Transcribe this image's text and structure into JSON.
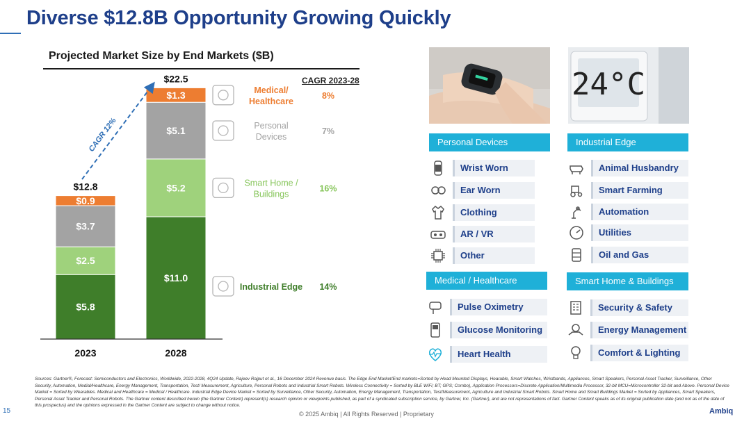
{
  "page_title": "Diverse $12.8B Opportunity Growing Quickly",
  "chart_title": "Projected Market Size by End Markets ($B)",
  "cagr_header": "CAGR 2023-28",
  "cagr_arrow_label": "CAGR 12%",
  "chart_data": {
    "type": "bar",
    "stacked": true,
    "categories": [
      "2023",
      "2028"
    ],
    "totals": [
      12.8,
      22.5
    ],
    "total_labels": [
      "$12.8",
      "$22.5"
    ],
    "series": [
      {
        "name": "Industrial Edge",
        "values": [
          5.8,
          11.0
        ],
        "labels": [
          "$5.8",
          "$11.0"
        ],
        "color": "#3f7e2a",
        "cagr": "14%",
        "legend_color": "#3f7e2a",
        "label_lines": [
          "Industrial Edge"
        ]
      },
      {
        "name": "Smart Home / Buildings",
        "values": [
          2.5,
          5.2
        ],
        "labels": [
          "$2.5",
          "$5.2"
        ],
        "color": "#9fd27c",
        "cagr": "16%",
        "legend_color": "#86c55a",
        "label_lines": [
          "Smart Home /",
          "Buildings"
        ]
      },
      {
        "name": "Personal Devices",
        "values": [
          3.7,
          5.1
        ],
        "labels": [
          "$3.7",
          "$5.1"
        ],
        "color": "#a3a3a3",
        "cagr": "7%",
        "legend_color": "#a3a3a3",
        "label_lines": [
          "Personal",
          "Devices"
        ]
      },
      {
        "name": "Medical/ Healthcare",
        "values": [
          0.9,
          1.3
        ],
        "labels": [
          "$0.9",
          "$1.3"
        ],
        "color": "#ed7d31",
        "cagr": "8%",
        "legend_color": "#ed7d31",
        "label_lines": [
          "Medical/",
          "Healthcare"
        ]
      }
    ],
    "grid": false,
    "legend": "right"
  },
  "personal_devices": {
    "header": "Personal Devices",
    "items": [
      {
        "label": "Wrist Worn",
        "icon": "watch-icon"
      },
      {
        "label": "Ear Worn",
        "icon": "earbuds-icon"
      },
      {
        "label": "Clothing",
        "icon": "clothing-icon"
      },
      {
        "label": "AR / VR",
        "icon": "vr-headset-icon"
      },
      {
        "label": "Other",
        "icon": "chip-icon"
      }
    ]
  },
  "industrial_edge": {
    "header": "Industrial Edge",
    "items": [
      {
        "label": "Animal Husbandry",
        "icon": "cow-icon"
      },
      {
        "label": "Smart Farming",
        "icon": "tractor-icon"
      },
      {
        "label": "Automation",
        "icon": "robot-arm-icon"
      },
      {
        "label": "Utilities",
        "icon": "meter-icon"
      },
      {
        "label": "Oil and Gas",
        "icon": "oil-drum-icon"
      }
    ]
  },
  "medical_healthcare": {
    "header": "Medical / Healthcare",
    "items": [
      {
        "label": "Pulse Oximetry",
        "icon": "finger-clip-icon"
      },
      {
        "label": "Glucose Monitoring",
        "icon": "glucose-meter-icon"
      },
      {
        "label": "Heart Health",
        "icon": "heartbeat-icon"
      }
    ]
  },
  "smart_home_buildings": {
    "header": "Smart Home & Buildings",
    "items": [
      {
        "label": "Security & Safety",
        "icon": "building-icon"
      },
      {
        "label": "Energy Management",
        "icon": "energy-hands-icon"
      },
      {
        "label": "Comfort & Lighting",
        "icon": "lightbulb-icon"
      }
    ]
  },
  "photos": {
    "smartwatch_alt": "smartwatch-photo",
    "thermostat_reading": "24°C"
  },
  "footer": {
    "sources": "Sources: Gartner®, Forecast: Semiconductors and Electronics, Worldwide, 2022-2028, 4Q24 Update, Rajeev Rajput et al., 16 December 2024 Revenue basis. The Edge End Market/End markets=Sorted by Head Mounted Displays, Hearable, Smart Watches, Wristbands, Appliances, Smart Speakers, Personal Asset Tracker, Surveillance, Other Security, Automation, Medial/Healthcare, Energy Management, Transportation, Test/ Measurement, Agriculture, Personal Robots and Industrial Smart Robots. Wireless Connectivity = Sorted by BLE WiFi; BT; GPS; Combo), Application Processors=Discrete Application/Multimedia Processor, 32-bit MCU=Microcontroller 32-bit and Above. Personal Device Market = Sorted by Wearables. Medical and Healthcare = Medical / Healthcare. Industrial Edge Device Market = Sorted by Surveillance, Other Security, Automation, Energy Management, Transportation, Test/Measurement, Agriculture and Industrial Smart Robots. Smart Home and Smart Buildings Market = Sorted by Appliances, Smart Speakers, Personal Asset Tracker and Personal Robots. The Gartner content described herein (the Gartner Content) represent(s) research opinion or viewpoints published, as part of a syndicated subscription service, by Gartner, Inc. (Gartner), and are not representations of fact. Gartner Content speaks as of its original publication date (and not as of the date of this prospectus) and the opinions expressed in the Gartner Content are subject to change without notice.",
    "page_number": "15",
    "copyright": "© 2025 Ambiq  |  All Rights Reserved | Proprietary",
    "logo": "Ambiq"
  }
}
